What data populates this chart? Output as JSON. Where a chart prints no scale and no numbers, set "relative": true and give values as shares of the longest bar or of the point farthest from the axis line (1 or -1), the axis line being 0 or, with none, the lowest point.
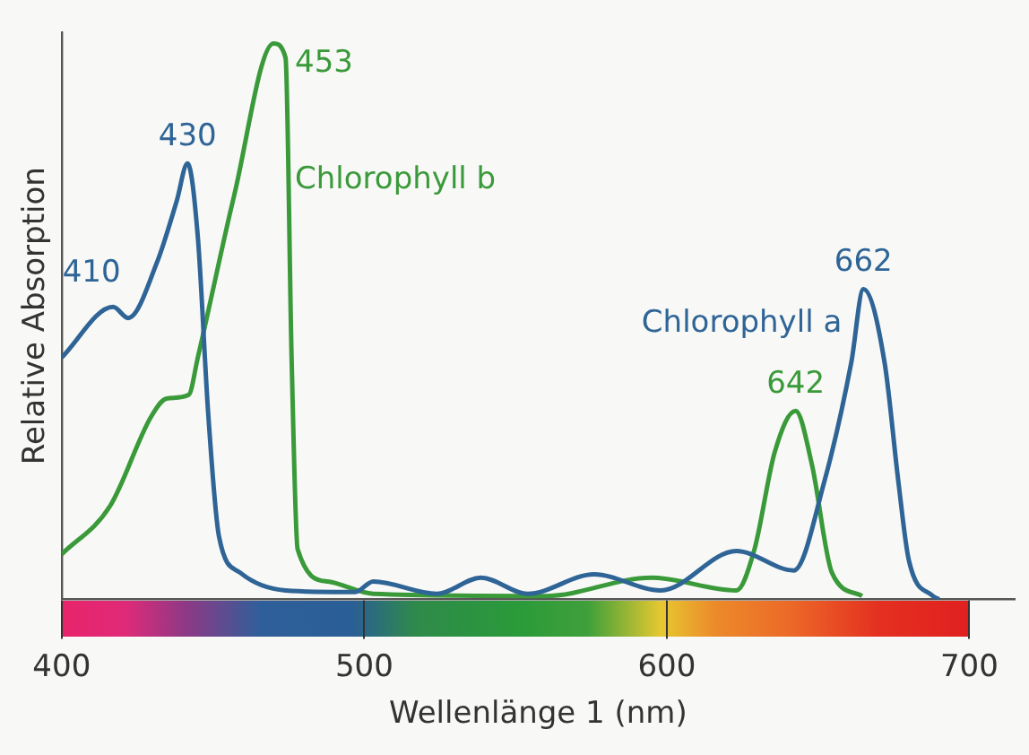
{
  "chart_data": {
    "type": "line",
    "xlabel": "Wellenlänge 1 (nm)",
    "ylabel": "Relative Absorption",
    "relative": true,
    "xlim": [
      400,
      715
    ],
    "xticks": [
      400,
      500,
      600,
      700
    ],
    "grid": false,
    "legend": false,
    "marker": "none",
    "line_style": "solid",
    "series": [
      {
        "name": "Chlorophyll a",
        "color": "#2f6496",
        "x": [
          400,
          417,
          422,
          431.5,
          438,
          441.6,
          445,
          448.5,
          452,
          459,
          474,
          497,
          503,
          524,
          538.6,
          554,
          576,
          598,
          623,
          642,
          652,
          661,
          665,
          672,
          676.6,
          680,
          688,
          690
        ],
        "values": [
          0.435,
          0.526,
          0.506,
          0.606,
          0.716,
          0.784,
          0.652,
          0.329,
          0.113,
          0.048,
          0.016,
          0.013,
          0.032,
          0.01,
          0.039,
          0.01,
          0.045,
          0.016,
          0.087,
          0.052,
          0.21,
          0.426,
          0.558,
          0.426,
          0.21,
          0.071,
          0.006,
          0
        ]
      },
      {
        "name": "Chlorophyll b",
        "color": "#3a9a3a",
        "x": [
          400,
          416,
          429.6,
          434.7,
          442,
          445,
          457,
          470,
          474,
          476,
          478,
          488,
          503,
          560,
          595,
          623,
          629,
          635.7,
          642.6,
          648,
          654.6,
          664.6
        ],
        "values": [
          0.081,
          0.168,
          0.329,
          0.361,
          0.368,
          0.435,
          0.726,
          1,
          0.974,
          0.435,
          0.09,
          0.032,
          0.01,
          0.006,
          0.039,
          0.016,
          0.09,
          0.265,
          0.339,
          0.242,
          0.048,
          0.006
        ]
      }
    ],
    "annotations": [
      {
        "text": "410",
        "x": 417,
        "y": 0.526
      },
      {
        "text": "430",
        "x": 441.6,
        "y": 0.784
      },
      {
        "text": "453",
        "x": 470,
        "y": 1
      },
      {
        "text": "642",
        "x": 642.6,
        "y": 0.339
      },
      {
        "text": "662",
        "x": 665,
        "y": 0.558
      }
    ]
  }
}
